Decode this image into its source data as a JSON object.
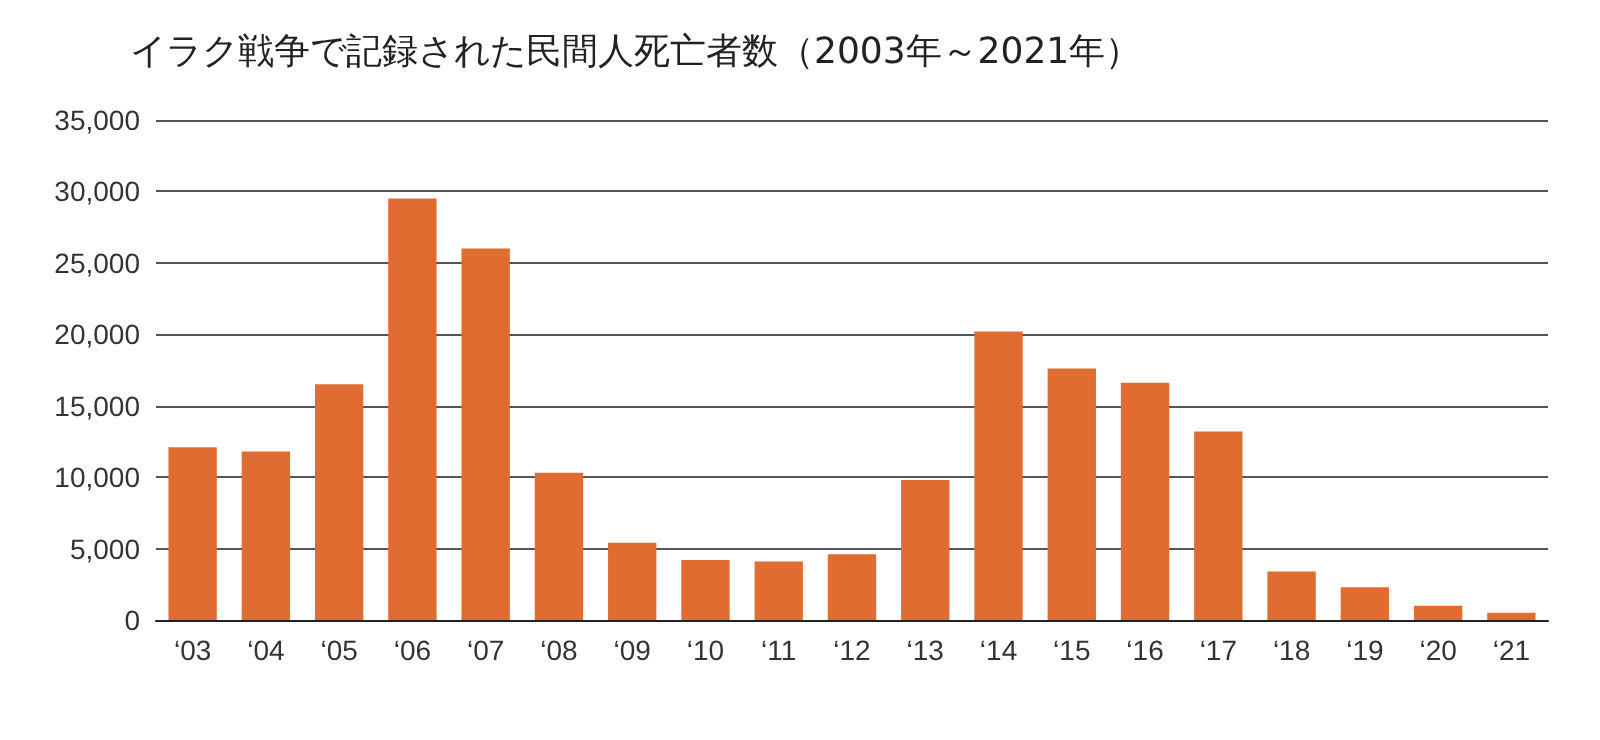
{
  "chart_data": {
    "type": "bar",
    "title": "イラク戦争で記録された民間人死亡者数（2003年～2021年）",
    "categories": [
      "‘03",
      "‘04",
      "‘05",
      "‘06",
      "‘07",
      "‘08",
      "‘09",
      "‘10",
      "‘11",
      "‘12",
      "‘13",
      "‘14",
      "‘15",
      "‘16",
      "‘17",
      "‘18",
      "‘19",
      "‘20",
      "‘21"
    ],
    "values": [
      12100,
      11800,
      16500,
      29500,
      26000,
      10300,
      5400,
      4200,
      4100,
      4600,
      9800,
      20200,
      17600,
      16600,
      13200,
      3400,
      2300,
      1000,
      500
    ],
    "color": "#e06c32",
    "ylim": [
      0,
      35000
    ],
    "yticks": [
      0,
      {
        "value": 5000,
        "label": "5,000"
      },
      {
        "value": 10000,
        "label": "10,000"
      },
      {
        "value": 15000,
        "label": "15,000"
      },
      {
        "value": 20000,
        "label": "20,000"
      },
      {
        "value": 25000,
        "label": "25,000"
      },
      {
        "value": 30000,
        "label": "30,000"
      },
      {
        "value": 35000,
        "label": "35,000"
      }
    ],
    "grid": "y"
  }
}
